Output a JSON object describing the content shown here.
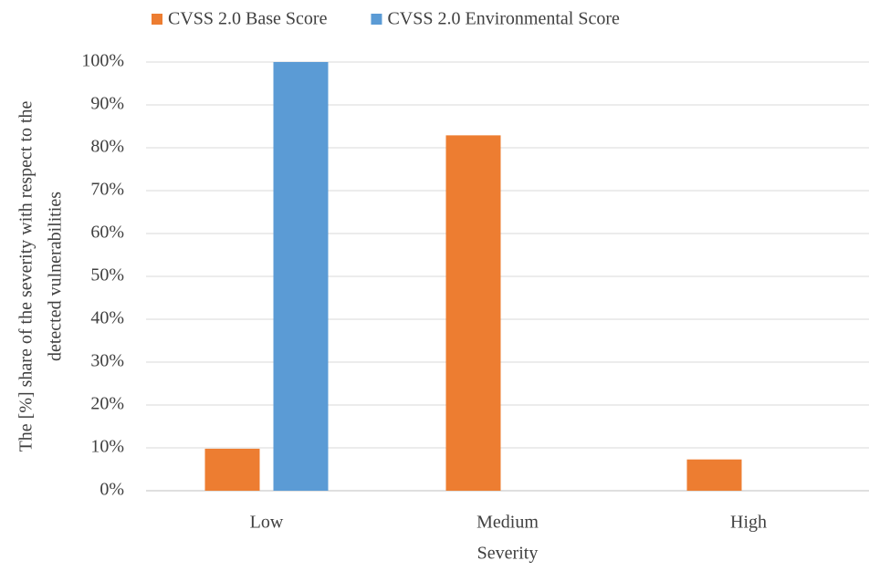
{
  "chart_data": {
    "type": "bar",
    "categories": [
      "Low",
      "Medium",
      "High"
    ],
    "series": [
      {
        "name": "CVSS 2.0 Base Score",
        "color": "#ed7d31",
        "values": [
          9.8,
          82.9,
          7.3
        ]
      },
      {
        "name": "CVSS 2.0 Environmental Score",
        "color": "#5b9bd5",
        "values": [
          100,
          0,
          0
        ]
      }
    ],
    "xlabel": "Severity",
    "ylabel": [
      "The [%] share of the severity with respect to the",
      "detected vulnerabilities"
    ],
    "ylim": [
      0,
      100
    ],
    "yticks": [
      {
        "value": 0,
        "label": "0%"
      },
      {
        "value": 10,
        "label": "10%"
      },
      {
        "value": 20,
        "label": "20%"
      },
      {
        "value": 30,
        "label": "30%"
      },
      {
        "value": 40,
        "label": "40%"
      },
      {
        "value": 50,
        "label": "50%"
      },
      {
        "value": 60,
        "label": "60%"
      },
      {
        "value": 70,
        "label": "70%"
      },
      {
        "value": 80,
        "label": "80%"
      },
      {
        "value": 90,
        "label": "90%"
      },
      {
        "value": 100,
        "label": "100%"
      }
    ],
    "grid": true,
    "legend": "top"
  }
}
